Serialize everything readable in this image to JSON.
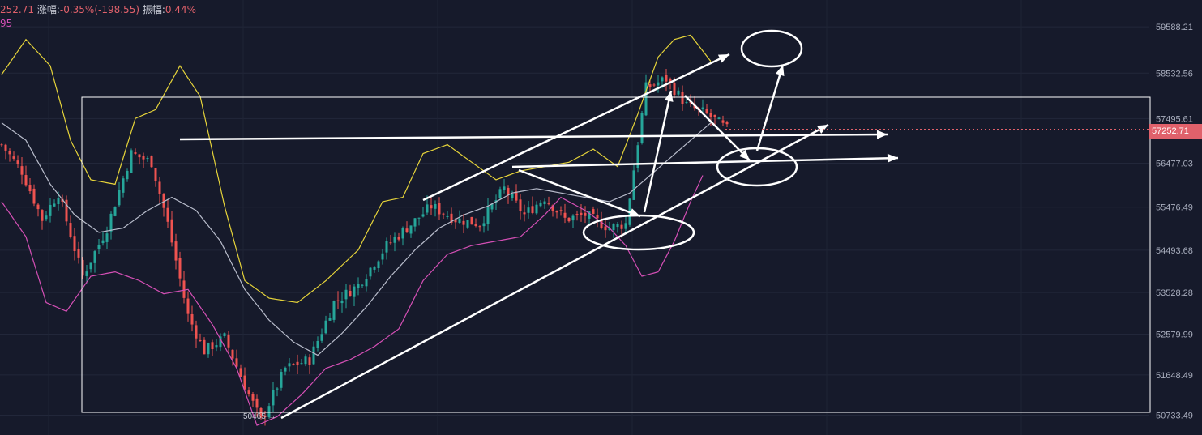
{
  "header": {
    "price_fragment": "252.71",
    "change_label": "涨幅:",
    "change_value": "-0.35%(-198.55)",
    "amplitude_label": "振幅:",
    "amplitude_value": "0.44%",
    "indicator_fragment": "95"
  },
  "price_axis": {
    "current_price": "57252.71",
    "low_marker": "50465 →"
  },
  "colors": {
    "background": "#161a2b",
    "up_candle": "#26a69a",
    "down_candle": "#ef5350",
    "bb_upper": "#e6d43a",
    "bb_middle": "#b8bccb",
    "bb_lower": "#d44fb5",
    "annotation": "#ffffff",
    "price_tag": "#e0616b"
  },
  "chart_data": {
    "type": "candlestick",
    "indicators": [
      "Bollinger upper",
      "Bollinger middle",
      "Bollinger lower"
    ],
    "y_ticks": [
      "59588.21",
      "58532.56",
      "57495.61",
      "56477.03",
      "55476.49",
      "54493.68",
      "53528.28",
      "52579.99",
      "51648.49",
      "50733.49"
    ],
    "ylim": [
      50280,
      60200
    ],
    "current_price": 57252.71,
    "low": 50465,
    "grid": true,
    "close_path": [
      [
        0,
        56900
      ],
      [
        5,
        56300
      ],
      [
        10,
        55200
      ],
      [
        14,
        55800
      ],
      [
        20,
        53900
      ],
      [
        26,
        55000
      ],
      [
        32,
        56700
      ],
      [
        37,
        56500
      ],
      [
        41,
        55100
      ],
      [
        46,
        53000
      ],
      [
        50,
        52200
      ],
      [
        55,
        52500
      ],
      [
        61,
        51200
      ],
      [
        64,
        50600
      ],
      [
        70,
        51800
      ],
      [
        76,
        52000
      ],
      [
        82,
        53300
      ],
      [
        88,
        53700
      ],
      [
        95,
        54600
      ],
      [
        100,
        55000
      ],
      [
        106,
        55500
      ],
      [
        112,
        55200
      ],
      [
        118,
        55100
      ],
      [
        124,
        55900
      ],
      [
        129,
        55300
      ],
      [
        134,
        55700
      ],
      [
        139,
        55200
      ],
      [
        144,
        55300
      ],
      [
        150,
        55000
      ],
      [
        154,
        55100
      ],
      [
        159,
        58200
      ],
      [
        164,
        58400
      ],
      [
        169,
        57800
      ],
      [
        174,
        57600
      ],
      [
        179,
        57252.71
      ]
    ],
    "bb_upper_path": [
      [
        0,
        58500
      ],
      [
        6,
        59300
      ],
      [
        12,
        58700
      ],
      [
        17,
        57000
      ],
      [
        22,
        56100
      ],
      [
        28,
        56000
      ],
      [
        33,
        57500
      ],
      [
        38,
        57700
      ],
      [
        44,
        58700
      ],
      [
        49,
        58000
      ],
      [
        55,
        55500
      ],
      [
        60,
        53800
      ],
      [
        66,
        53400
      ],
      [
        73,
        53300
      ],
      [
        80,
        53800
      ],
      [
        88,
        54500
      ],
      [
        94,
        55600
      ],
      [
        99,
        55700
      ],
      [
        104,
        56700
      ],
      [
        110,
        56900
      ],
      [
        116,
        56500
      ],
      [
        122,
        56100
      ],
      [
        128,
        56300
      ],
      [
        134,
        56400
      ],
      [
        140,
        56500
      ],
      [
        146,
        56800
      ],
      [
        152,
        56400
      ],
      [
        157,
        57600
      ],
      [
        162,
        58900
      ],
      [
        166,
        59300
      ],
      [
        170,
        59400
      ],
      [
        175,
        58800
      ]
    ],
    "bb_mid_path": [
      [
        0,
        57400
      ],
      [
        6,
        57000
      ],
      [
        12,
        56000
      ],
      [
        18,
        55300
      ],
      [
        24,
        54900
      ],
      [
        30,
        55000
      ],
      [
        36,
        55400
      ],
      [
        42,
        55700
      ],
      [
        48,
        55400
      ],
      [
        54,
        54700
      ],
      [
        60,
        53600
      ],
      [
        66,
        52900
      ],
      [
        72,
        52400
      ],
      [
        78,
        52100
      ],
      [
        84,
        52600
      ],
      [
        90,
        53200
      ],
      [
        96,
        53900
      ],
      [
        102,
        54500
      ],
      [
        108,
        55000
      ],
      [
        114,
        55300
      ],
      [
        120,
        55500
      ],
      [
        126,
        55800
      ],
      [
        132,
        55900
      ],
      [
        138,
        55800
      ],
      [
        144,
        55700
      ],
      [
        150,
        55600
      ],
      [
        155,
        55800
      ],
      [
        160,
        56200
      ],
      [
        165,
        56600
      ],
      [
        170,
        57000
      ],
      [
        175,
        57400
      ]
    ],
    "bb_lower_path": [
      [
        0,
        55600
      ],
      [
        6,
        54800
      ],
      [
        11,
        53300
      ],
      [
        16,
        53100
      ],
      [
        22,
        53900
      ],
      [
        28,
        54000
      ],
      [
        34,
        53800
      ],
      [
        40,
        53500
      ],
      [
        46,
        53600
      ],
      [
        52,
        52800
      ],
      [
        58,
        51800
      ],
      [
        63,
        50500
      ],
      [
        68,
        50700
      ],
      [
        74,
        51200
      ],
      [
        80,
        51800
      ],
      [
        86,
        52000
      ],
      [
        92,
        52300
      ],
      [
        98,
        52700
      ],
      [
        104,
        53800
      ],
      [
        110,
        54400
      ],
      [
        116,
        54600
      ],
      [
        122,
        54700
      ],
      [
        128,
        54800
      ],
      [
        134,
        55300
      ],
      [
        138,
        55700
      ],
      [
        144,
        55400
      ],
      [
        150,
        55000
      ],
      [
        154,
        54600
      ],
      [
        158,
        53900
      ],
      [
        162,
        54000
      ],
      [
        166,
        54700
      ],
      [
        170,
        55600
      ],
      [
        173,
        56200
      ]
    ]
  }
}
